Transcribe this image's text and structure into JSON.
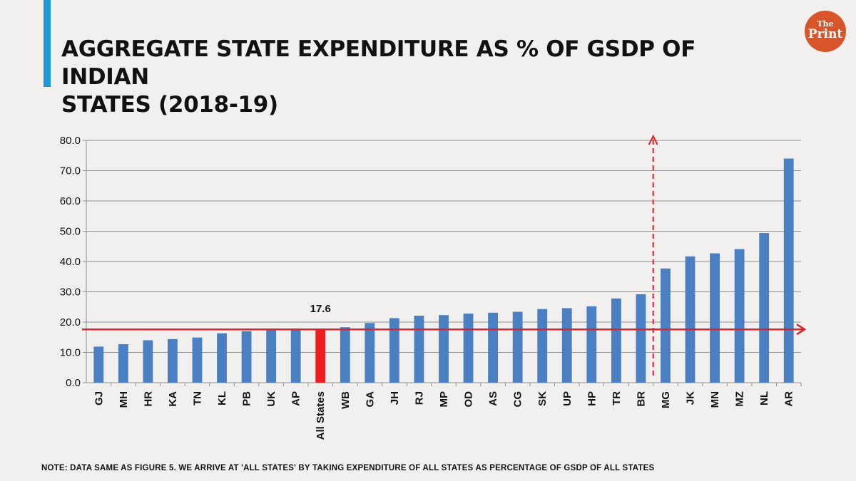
{
  "title_line1": "AGGREGATE STATE EXPENDITURE AS % OF GSDP OF INDIAN",
  "title_line2": "STATES (2018-19)",
  "logo": {
    "line1": "The",
    "line2": "Print"
  },
  "note": "NOTE: DATA SAME AS FIGURE 5. WE ARRIVE AT 'ALL STATES' BY TAKING EXPENDITURE OF ALL STATES AS PERCENTAGE OF GSDP OF ALL STATES",
  "colors": {
    "bar": "#4a7fc1",
    "highlight": "#ee1c1c",
    "reference": "#e0202a",
    "accent": "#1a9bd7",
    "logo": "#d8542a"
  },
  "chart_data": {
    "type": "bar",
    "title": "AGGREGATE STATE EXPENDITURE AS % OF GSDP OF INDIAN STATES (2018-19)",
    "xlabel": "",
    "ylabel": "",
    "ylim": [
      0,
      80
    ],
    "yticks": [
      "0.0",
      "10.0",
      "20.0",
      "30.0",
      "40.0",
      "50.0",
      "60.0",
      "70.0",
      "80.0"
    ],
    "grid": true,
    "categories": [
      "GJ",
      "MH",
      "HR",
      "KA",
      "TN",
      "KL",
      "PB",
      "UK",
      "AP",
      "All States",
      "WB",
      "GA",
      "JH",
      "RJ",
      "MP",
      "OD",
      "AS",
      "CG",
      "SK",
      "UP",
      "HP",
      "TR",
      "BR",
      "MG",
      "JK",
      "MN",
      "MZ",
      "NL",
      "AR"
    ],
    "values": [
      11.9,
      12.7,
      14.0,
      14.4,
      14.9,
      16.3,
      17.0,
      17.3,
      17.4,
      17.6,
      18.3,
      19.7,
      21.3,
      22.1,
      22.3,
      22.8,
      23.1,
      23.4,
      24.3,
      24.6,
      25.2,
      27.8,
      29.2,
      37.7,
      41.7,
      42.7,
      44.1,
      49.4,
      74.0
    ],
    "highlight_category": "All States",
    "data_labels": [
      {
        "category": "All States",
        "label": "17.6"
      }
    ],
    "reference_line": {
      "value": 17.6,
      "direction": "horizontal arrow"
    },
    "divider": {
      "between": [
        "BR",
        "MG"
      ],
      "style": "dashed vertical arrow"
    }
  }
}
